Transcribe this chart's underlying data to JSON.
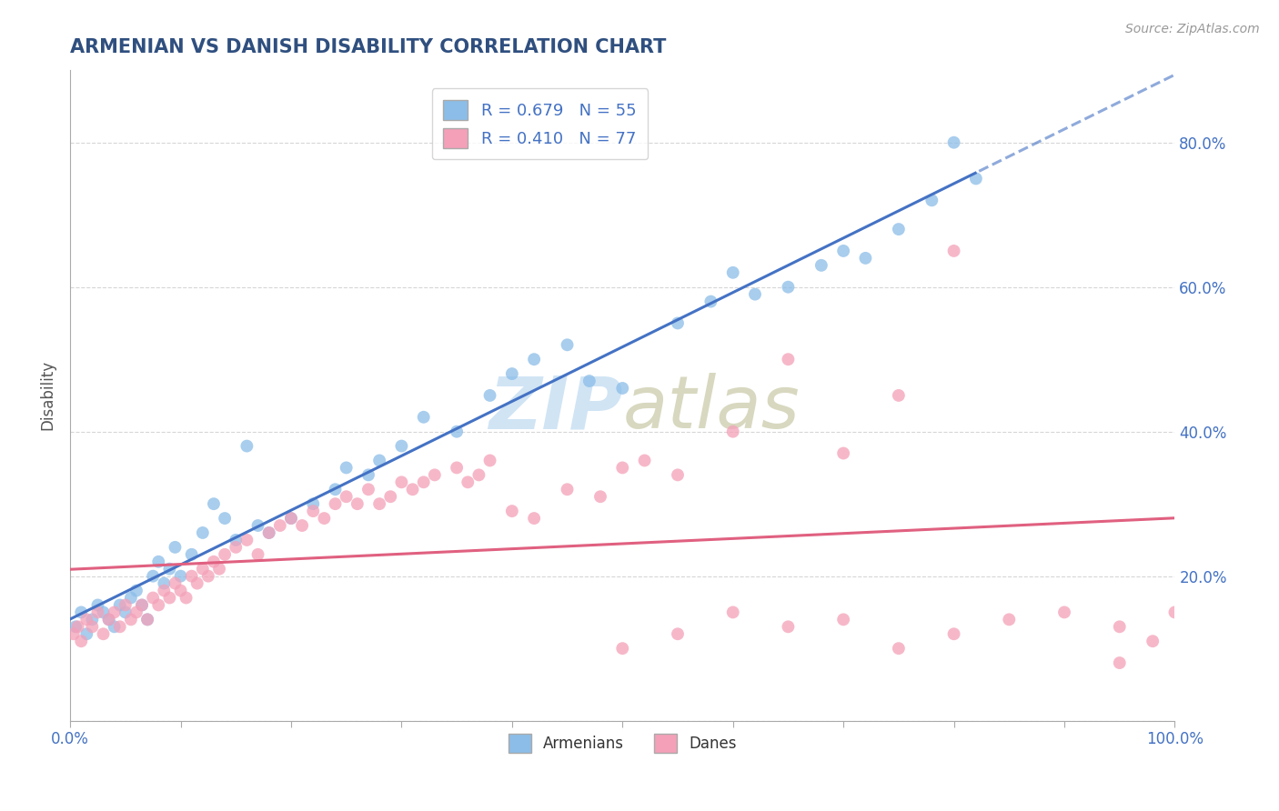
{
  "title": "ARMENIAN VS DANISH DISABILITY CORRELATION CHART",
  "source": "Source: ZipAtlas.com",
  "ylabel": "Disability",
  "legend_armenians": "Armenians",
  "legend_danes": "Danes",
  "r_armenian": 0.679,
  "n_armenian": 55,
  "r_danish": 0.41,
  "n_danish": 77,
  "color_armenian": "#8BBDE8",
  "color_danish": "#F4A0B8",
  "color_trendline_armenian": "#4472C4",
  "color_trendline_danish": "#E06080",
  "watermark_text": "ZIPatlas",
  "watermark_color": "#D0E4F4",
  "title_color": "#2F4F7F",
  "axis_label_color": "#4472C4",
  "grid_color": "#CCCCCC",
  "arm_x": [
    0.5,
    1.0,
    1.5,
    2.0,
    2.5,
    3.0,
    3.5,
    4.0,
    4.5,
    5.0,
    5.5,
    6.0,
    6.5,
    7.0,
    7.5,
    8.0,
    8.5,
    9.0,
    9.5,
    10.0,
    11.0,
    12.0,
    13.0,
    14.0,
    15.0,
    16.0,
    17.0,
    18.0,
    20.0,
    22.0,
    24.0,
    25.0,
    27.0,
    28.0,
    30.0,
    32.0,
    35.0,
    38.0,
    40.0,
    42.0,
    45.0,
    47.0,
    50.0,
    55.0,
    58.0,
    60.0,
    62.0,
    65.0,
    68.0,
    70.0,
    72.0,
    75.0,
    78.0,
    80.0,
    82.0
  ],
  "arm_y": [
    13,
    15,
    12,
    14,
    16,
    15,
    14,
    13,
    16,
    15,
    17,
    18,
    16,
    14,
    20,
    22,
    19,
    21,
    24,
    20,
    23,
    26,
    30,
    28,
    25,
    38,
    27,
    26,
    28,
    30,
    32,
    35,
    34,
    36,
    38,
    42,
    40,
    45,
    48,
    50,
    52,
    47,
    46,
    55,
    58,
    62,
    59,
    60,
    63,
    65,
    64,
    68,
    72,
    80,
    75
  ],
  "dan_x": [
    0.3,
    0.7,
    1.0,
    1.5,
    2.0,
    2.5,
    3.0,
    3.5,
    4.0,
    4.5,
    5.0,
    5.5,
    6.0,
    6.5,
    7.0,
    7.5,
    8.0,
    8.5,
    9.0,
    9.5,
    10.0,
    10.5,
    11.0,
    11.5,
    12.0,
    12.5,
    13.0,
    13.5,
    14.0,
    15.0,
    16.0,
    17.0,
    18.0,
    19.0,
    20.0,
    21.0,
    22.0,
    23.0,
    24.0,
    25.0,
    26.0,
    27.0,
    28.0,
    29.0,
    30.0,
    31.0,
    32.0,
    33.0,
    35.0,
    36.0,
    37.0,
    38.0,
    40.0,
    42.0,
    45.0,
    48.0,
    50.0,
    52.0,
    55.0,
    60.0,
    65.0,
    70.0,
    75.0,
    80.0,
    50.0,
    55.0,
    60.0,
    65.0,
    70.0,
    75.0,
    80.0,
    85.0,
    90.0,
    95.0,
    98.0,
    100.0,
    95.0
  ],
  "dan_y": [
    12,
    13,
    11,
    14,
    13,
    15,
    12,
    14,
    15,
    13,
    16,
    14,
    15,
    16,
    14,
    17,
    16,
    18,
    17,
    19,
    18,
    17,
    20,
    19,
    21,
    20,
    22,
    21,
    23,
    24,
    25,
    23,
    26,
    27,
    28,
    27,
    29,
    28,
    30,
    31,
    30,
    32,
    30,
    31,
    33,
    32,
    33,
    34,
    35,
    33,
    34,
    36,
    29,
    28,
    32,
    31,
    35,
    36,
    34,
    40,
    50,
    37,
    45,
    65,
    10,
    12,
    15,
    13,
    14,
    10,
    12,
    14,
    15,
    13,
    11,
    15,
    8
  ],
  "xlim": [
    0,
    100
  ],
  "ylim": [
    0,
    90
  ],
  "xtick_vals": [
    0,
    10,
    20,
    30,
    40,
    50,
    60,
    70,
    80,
    90,
    100
  ],
  "ytick_vals": [
    0,
    20,
    40,
    60,
    80
  ]
}
